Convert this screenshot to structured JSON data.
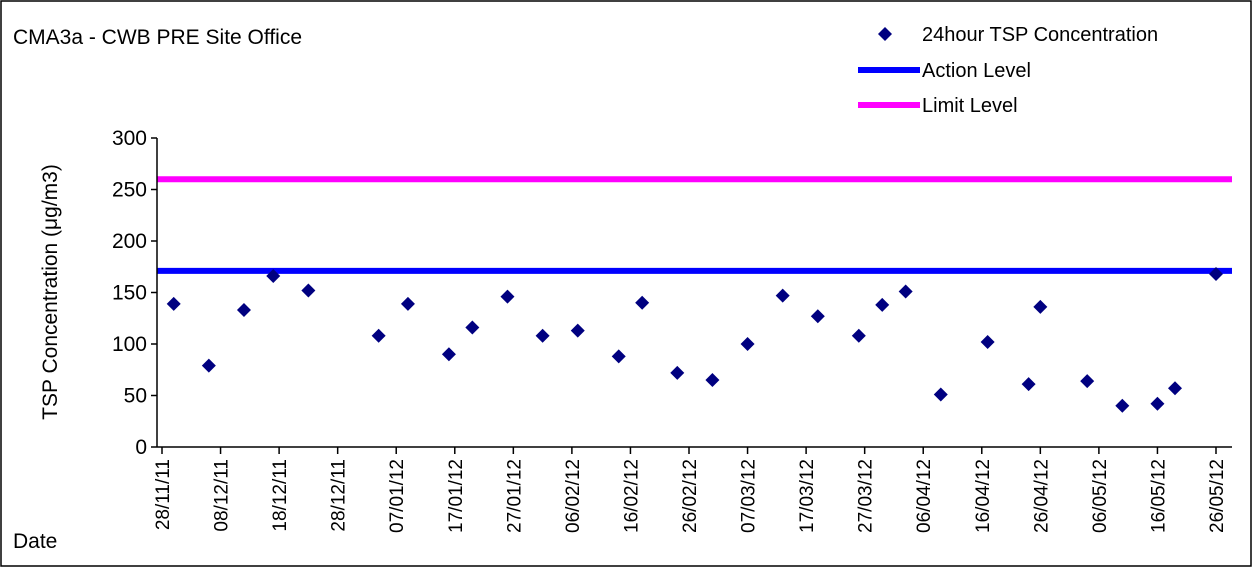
{
  "chart_data": {
    "type": "scatter",
    "title": "CMA3a - CWB PRE Site Office",
    "xlabel": "Date",
    "ylabel": "TSP Concentration (μg/m3)",
    "ylim": [
      0,
      300
    ],
    "y_ticks": [
      "0",
      "50",
      "100",
      "150",
      "200",
      "250",
      "300"
    ],
    "x_start": "2011-11-28",
    "x_end": "2012-05-26",
    "x_tick_labels": [
      "28/11/11",
      "08/12/11",
      "18/12/11",
      "28/12/11",
      "07/01/12",
      "17/01/12",
      "27/01/12",
      "06/02/12",
      "16/02/12",
      "26/02/12",
      "07/03/12",
      "17/03/12",
      "27/03/12",
      "06/04/12",
      "16/04/12",
      "26/04/12",
      "06/05/12",
      "16/05/12",
      "26/05/12"
    ],
    "legend_position": "top-right",
    "grid": false,
    "series": [
      {
        "name": "24hour TSP Concentration",
        "type": "scatter",
        "color": "#000080",
        "marker": "diamond",
        "points": [
          {
            "x": "2011-11-30",
            "y": 139
          },
          {
            "x": "2011-12-06",
            "y": 79
          },
          {
            "x": "2011-12-12",
            "y": 133
          },
          {
            "x": "2011-12-17",
            "y": 166
          },
          {
            "x": "2011-12-23",
            "y": 152
          },
          {
            "x": "2012-01-04",
            "y": 108
          },
          {
            "x": "2012-01-09",
            "y": 139
          },
          {
            "x": "2012-01-16",
            "y": 90
          },
          {
            "x": "2012-01-20",
            "y": 116
          },
          {
            "x": "2012-01-26",
            "y": 146
          },
          {
            "x": "2012-02-01",
            "y": 108
          },
          {
            "x": "2012-02-07",
            "y": 113
          },
          {
            "x": "2012-02-14",
            "y": 88
          },
          {
            "x": "2012-02-18",
            "y": 140
          },
          {
            "x": "2012-02-24",
            "y": 72
          },
          {
            "x": "2012-03-01",
            "y": 65
          },
          {
            "x": "2012-03-07",
            "y": 100
          },
          {
            "x": "2012-03-13",
            "y": 147
          },
          {
            "x": "2012-03-19",
            "y": 127
          },
          {
            "x": "2012-03-26",
            "y": 108
          },
          {
            "x": "2012-03-30",
            "y": 138
          },
          {
            "x": "2012-04-03",
            "y": 151
          },
          {
            "x": "2012-04-09",
            "y": 51
          },
          {
            "x": "2012-04-17",
            "y": 102
          },
          {
            "x": "2012-04-24",
            "y": 61
          },
          {
            "x": "2012-04-26",
            "y": 136
          },
          {
            "x": "2012-05-04",
            "y": 64
          },
          {
            "x": "2012-05-10",
            "y": 40
          },
          {
            "x": "2012-05-16",
            "y": 42
          },
          {
            "x": "2012-05-19",
            "y": 57
          },
          {
            "x": "2012-05-26",
            "y": 168
          }
        ]
      },
      {
        "name": "Action Level",
        "type": "hline",
        "color": "#0000FF",
        "value": 171
      },
      {
        "name": "Limit Level",
        "type": "hline",
        "color": "#FF00FF",
        "value": 260
      }
    ]
  }
}
